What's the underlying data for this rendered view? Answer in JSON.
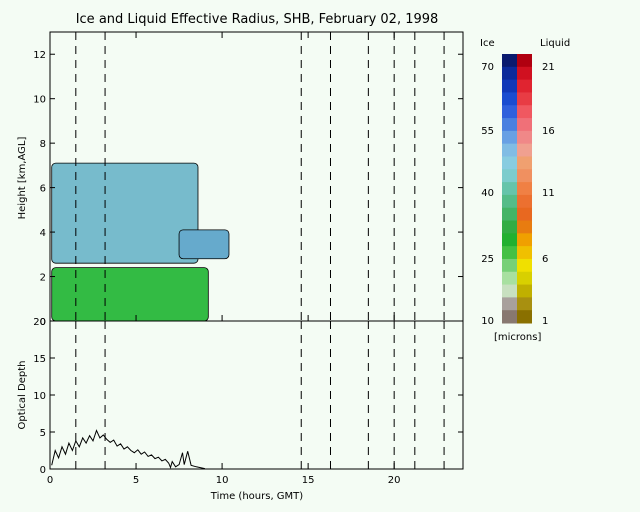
{
  "chart_data": [
    {
      "type": "heatmap",
      "title": "Ice and Liquid Effective Radius, SHB, February 02, 1998",
      "xlabel": "",
      "ylabel": "Height [km,AGL]",
      "xlim": [
        0,
        24
      ],
      "ylim": [
        0,
        13
      ],
      "xticks": [
        0,
        5,
        10,
        15,
        20
      ],
      "yticks": [
        0,
        2,
        4,
        6,
        8,
        10,
        12
      ],
      "grid": false,
      "dashed_time_markers": [
        1.5,
        3.2,
        14.6,
        16.3,
        18.5,
        20.0,
        21.2,
        22.9
      ],
      "cloud_regions": [
        {
          "name": "lower liquid layer",
          "x": [
            0.1,
            9.2
          ],
          "y": [
            0,
            2.4
          ],
          "color": "#33bb44"
        },
        {
          "name": "upper ice layer",
          "x": [
            0.1,
            8.6
          ],
          "y": [
            2.6,
            7.1
          ],
          "color": "#77bbcc"
        },
        {
          "name": "isolated ice cloud",
          "x": [
            7.5,
            10.4
          ],
          "y": [
            2.8,
            4.1
          ],
          "color": "#66aacc"
        }
      ]
    },
    {
      "type": "line",
      "xlabel": "Time (hours, GMT)",
      "ylabel": "Optical Depth",
      "xlim": [
        0,
        24
      ],
      "ylim": [
        0,
        20
      ],
      "xticks": [
        0,
        5,
        10,
        15,
        20
      ],
      "yticks": [
        0,
        5,
        10,
        15,
        20
      ],
      "grid": false,
      "dashed_time_markers": [
        1.5,
        3.2,
        14.6,
        16.3,
        18.5,
        20.0,
        21.2,
        22.9
      ],
      "series": [
        {
          "x": [
            0.1,
            0.3,
            0.5,
            0.7,
            0.9,
            1.1,
            1.3,
            1.5,
            1.7,
            1.9,
            2.1,
            2.3,
            2.5,
            2.7,
            2.9,
            3.1,
            3.3,
            3.5,
            3.7,
            3.9,
            4.1,
            4.3,
            4.5,
            4.7,
            4.9,
            5.1,
            5.3,
            5.5,
            5.7,
            5.9,
            6.1,
            6.3,
            6.5,
            6.7,
            6.9,
            7.0,
            7.1,
            7.3,
            7.5,
            7.7,
            7.8,
            8.0,
            8.2,
            8.5,
            8.8,
            9.0
          ],
          "values": [
            0.5,
            2.5,
            1.5,
            3.0,
            2.0,
            3.5,
            2.5,
            3.8,
            3.0,
            4.2,
            3.5,
            4.5,
            3.8,
            5.2,
            4.2,
            4.6,
            4.0,
            3.6,
            3.9,
            3.1,
            3.4,
            2.7,
            3.0,
            2.5,
            2.2,
            2.6,
            2.0,
            2.3,
            1.7,
            1.9,
            1.4,
            1.6,
            1.1,
            1.3,
            0.8,
            0.2,
            1.0,
            0.3,
            0.6,
            2.2,
            0.6,
            2.4,
            0.5,
            0.3,
            0.15,
            0.05
          ]
        }
      ]
    }
  ],
  "colorbar": {
    "left_label": "Ice",
    "right_label": "Liquid",
    "unit_label": "[microns]",
    "ice_ticks": [
      "70",
      "55",
      "40",
      "25",
      "10"
    ],
    "liquid_ticks": [
      "21",
      "16",
      "11",
      "6",
      "1"
    ],
    "ice_colors": [
      "#0a1a6e",
      "#0c2a9a",
      "#1038b8",
      "#1a4cd0",
      "#3060dc",
      "#4a80e0",
      "#68a0e4",
      "#80bce4",
      "#88cce0",
      "#7ccccc",
      "#66c4aa",
      "#55bc88",
      "#44b466",
      "#33ac44",
      "#22b030",
      "#44c044",
      "#77d077",
      "#a8e0a0",
      "#c8e0c0",
      "#a8a09c",
      "#887870"
    ],
    "liquid_colors": [
      "#b00010",
      "#d01020",
      "#e02430",
      "#e83c44",
      "#f05860",
      "#f07078",
      "#f08888",
      "#f0a090",
      "#f0a070",
      "#f09060",
      "#f08044",
      "#ec7030",
      "#e86820",
      "#e87c10",
      "#f0a000",
      "#f0c000",
      "#f0e000",
      "#d8d000",
      "#c0b000",
      "#a89010",
      "#8a7000"
    ]
  }
}
